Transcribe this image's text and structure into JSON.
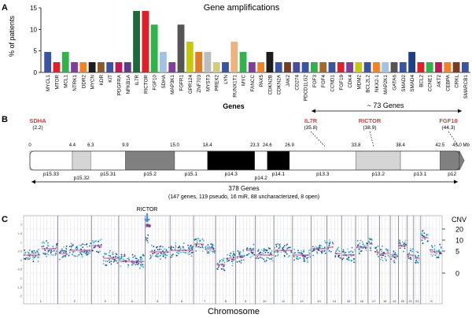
{
  "panels": {
    "a": "A",
    "b": "B",
    "c": "C"
  },
  "chart_data": [
    {
      "type": "bar",
      "title": "Gene amplifications",
      "xlabel": "Genes",
      "ylabel": "% of patients",
      "ylim": [
        0,
        15
      ],
      "yticks": [
        0,
        5,
        10,
        15
      ],
      "categories": [
        "MYCL1",
        "MTOR",
        "MCL1",
        "NTRK1",
        "DDR2",
        "MYCN",
        "KDR",
        "KIT",
        "PDGFRA",
        "NFKB1A",
        "IL7R",
        "RICTOR",
        "FGF10",
        "SDHA",
        "MAP3K1",
        "FGFR1",
        "GPR124",
        "ZNF703",
        "MYST3",
        "PREX2",
        "LYN",
        "RUNX1T1",
        "MYC",
        "FANCC",
        "PAX5",
        "CDKN2B",
        "CDKN2A",
        "JAK2",
        "CD274",
        "PDCD1LG2",
        "FGF3",
        "FGF4",
        "CCND1",
        "FGF19",
        "CDK4",
        "MDM2",
        "BCL2L2",
        "NKX2-1",
        "MAP2K1",
        "GATA6",
        "SMAD2",
        "SMAD4",
        "BCL2",
        "CCNE1",
        "AKT2",
        "CEBPA",
        "CRKL",
        "SMARCB1"
      ],
      "values": [
        4.76,
        2.38,
        4.76,
        2.38,
        2.38,
        2.38,
        2.38,
        2.38,
        2.38,
        2.38,
        14.29,
        14.29,
        11.11,
        4.76,
        2.38,
        11.11,
        7.14,
        4.76,
        4.76,
        2.38,
        2.38,
        7.14,
        4.76,
        2.38,
        2.38,
        4.76,
        2.38,
        2.38,
        2.38,
        2.38,
        2.38,
        2.38,
        2.38,
        2.38,
        2.38,
        2.38,
        2.38,
        2.38,
        2.38,
        2.38,
        2.38,
        4.76,
        2.38,
        2.38,
        2.38,
        2.38,
        2.38,
        2.38
      ],
      "colors": [
        "#3a54a4",
        "#e31e26",
        "#2fb34a",
        "#7f3f98",
        "#f58220",
        "#1c1c1c",
        "#8b5a2b",
        "#3a54a4",
        "#c2185b",
        "#5e3a8a",
        "#1a6b3a",
        "#e31e26",
        "#2fb34a",
        "#9ec3e6",
        "#7f3f98",
        "#555555",
        "#c9c900",
        "#e07b2a",
        "#bdbdbd",
        "#cfcf7a",
        "#3a54a4",
        "#f0b27a",
        "#2fb34a",
        "#7f3f98",
        "#f58220",
        "#1c1c1c",
        "#3a54a4",
        "#7a3b1e",
        "#4a4aa0",
        "#3a54a4",
        "#2fb34a",
        "#a56a2b",
        "#3a54a4",
        "#e31e26",
        "#7f3f98",
        "#c9c900",
        "#3a54a4",
        "#f58220",
        "#9ec3e6",
        "#555555",
        "#3a54a4",
        "#1c3f8a",
        "#e31e26",
        "#2fb34a",
        "#c2185b",
        "#f58220",
        "#7a3b1e",
        "#3a54a4"
      ]
    },
    {
      "type": "ideogram",
      "labels_top": [
        {
          "name": "SDHA",
          "pos": "(2.2)"
        },
        {
          "name": "IL7R",
          "pos": "(35.8)"
        },
        {
          "name": "RICTOR",
          "pos": "(38.9)"
        },
        {
          "name": "FGF10",
          "pos": "(44.3)"
        }
      ],
      "range_label": "~ 73 Genes",
      "scale_ticks": [
        "0",
        "4.4",
        "6.3",
        "9.9",
        "15.0",
        "18.4",
        "23.3",
        "24.6",
        "26.9",
        "33.8",
        "38.4",
        "42.5",
        "45.0 Mb"
      ],
      "scale_values": [
        0,
        4.4,
        6.3,
        9.9,
        15.0,
        18.4,
        23.3,
        24.6,
        26.9,
        33.8,
        38.4,
        42.5,
        45.0
      ],
      "bands": [
        "p15.33",
        "p15.32",
        "p15.31",
        "p15.2",
        "p15.1",
        "p14.3",
        "p14.2",
        "p14.1",
        "p13.3",
        "p13.2",
        "p13.1",
        "p12"
      ],
      "total_label": "378 Genes",
      "total_detail": "(147 genes, 119 pseudo, 16 miR, 88 uncharacterized, 8 open)"
    },
    {
      "type": "scatter",
      "xlabel": "Chromosome",
      "annotation": "RICTOR",
      "cnv_label": "CNV",
      "right_ticks": [
        "20",
        "10",
        "5",
        "0"
      ],
      "left_ticks": [
        "2",
        "1.5",
        "1",
        "0.5",
        "0",
        "-0.5",
        "-1",
        "-1.5",
        "-2"
      ],
      "chromosomes": [
        "1",
        "2",
        "3",
        "4",
        "5",
        "6",
        "7",
        "8",
        "9",
        "10",
        "11",
        "12",
        "13",
        "14",
        "15",
        "16",
        "17",
        "18",
        "19",
        "20",
        "21",
        "22",
        "X"
      ]
    }
  ]
}
